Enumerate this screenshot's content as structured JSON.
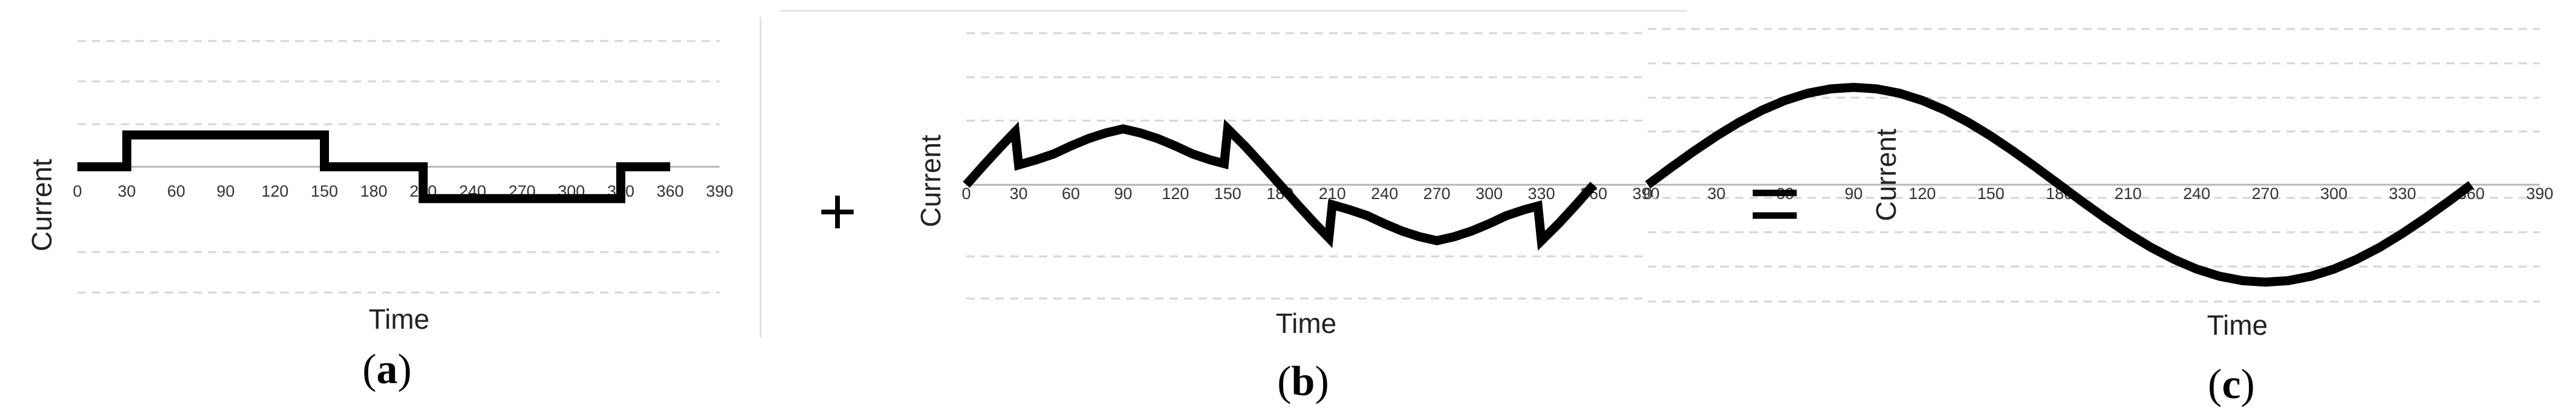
{
  "operators": {
    "plus": "+",
    "equals": "="
  },
  "chart_data": [
    {
      "type": "line",
      "panel_label": {
        "open": "(",
        "letter": "a",
        "close": ")"
      },
      "title": "",
      "xlabel": "Time",
      "ylabel": "Current",
      "xlim": [
        0,
        390
      ],
      "ylim": [
        -1.5,
        1.5
      ],
      "grid": true,
      "xticks": [
        "0",
        "30",
        "60",
        "90",
        "120",
        "150",
        "180",
        "210",
        "240",
        "270",
        "300",
        "330",
        "360",
        "390"
      ],
      "series": [
        {
          "x": [
            0,
            30,
            30,
            150,
            150,
            210,
            210,
            330,
            330,
            360
          ],
          "y": [
            0,
            0,
            0.38,
            0.38,
            0,
            0,
            -0.38,
            -0.38,
            0,
            0
          ]
        }
      ]
    },
    {
      "type": "line",
      "panel_label": {
        "open": "(",
        "letter": "b",
        "close": ")"
      },
      "title": "",
      "xlabel": "Time",
      "ylabel": "Current",
      "xlim": [
        0,
        390
      ],
      "ylim": [
        -1.2,
        1.6
      ],
      "grid": true,
      "xticks": [
        "0",
        "30",
        "60",
        "90",
        "120",
        "150",
        "180",
        "210",
        "240",
        "270",
        "300",
        "330",
        "360",
        "390"
      ],
      "series": [
        {
          "x": [
            0,
            10,
            20,
            28,
            30,
            40,
            50,
            60,
            70,
            80,
            90,
            100,
            110,
            120,
            130,
            140,
            148,
            150,
            160,
            170,
            180,
            190,
            200,
            208,
            210,
            220,
            230,
            240,
            250,
            260,
            270,
            280,
            290,
            300,
            310,
            320,
            328,
            330,
            340,
            350,
            360
          ],
          "y": [
            0,
            0.207,
            0.407,
            0.56,
            0.21,
            0.263,
            0.325,
            0.41,
            0.487,
            0.547,
            0.59,
            0.547,
            0.487,
            0.41,
            0.325,
            0.263,
            0.224,
            0.59,
            0.407,
            0.207,
            0,
            -0.207,
            -0.407,
            -0.56,
            -0.21,
            -0.263,
            -0.325,
            -0.41,
            -0.487,
            -0.547,
            -0.59,
            -0.547,
            -0.487,
            -0.41,
            -0.325,
            -0.263,
            -0.224,
            -0.59,
            -0.407,
            -0.207,
            0
          ]
        }
      ]
    },
    {
      "type": "line",
      "panel_label": {
        "open": "(",
        "letter": "c",
        "close": ")"
      },
      "title": "",
      "xlabel": "Time",
      "ylabel": "Current",
      "xlim": [
        0,
        390
      ],
      "ylim": [
        -1.2,
        1.6
      ],
      "grid": true,
      "xticks": [
        "0",
        "30",
        "60",
        "90",
        "120",
        "150",
        "180",
        "210",
        "240",
        "270",
        "300",
        "330",
        "360",
        "390"
      ],
      "series": [
        {
          "x": [
            0,
            10,
            20,
            30,
            40,
            50,
            60,
            70,
            80,
            90,
            100,
            110,
            120,
            130,
            140,
            150,
            160,
            170,
            180,
            190,
            200,
            210,
            220,
            230,
            240,
            250,
            260,
            270,
            280,
            290,
            300,
            310,
            320,
            330,
            340,
            350,
            360
          ],
          "y": [
            0,
            0.174,
            0.342,
            0.5,
            0.643,
            0.766,
            0.866,
            0.94,
            0.985,
            1,
            0.985,
            0.94,
            0.866,
            0.766,
            0.643,
            0.5,
            0.342,
            0.174,
            0,
            -0.174,
            -0.342,
            -0.5,
            -0.643,
            -0.766,
            -0.866,
            -0.94,
            -0.985,
            -1,
            -0.985,
            -0.94,
            -0.866,
            -0.766,
            -0.643,
            -0.5,
            -0.342,
            -0.174,
            0
          ]
        }
      ]
    }
  ]
}
